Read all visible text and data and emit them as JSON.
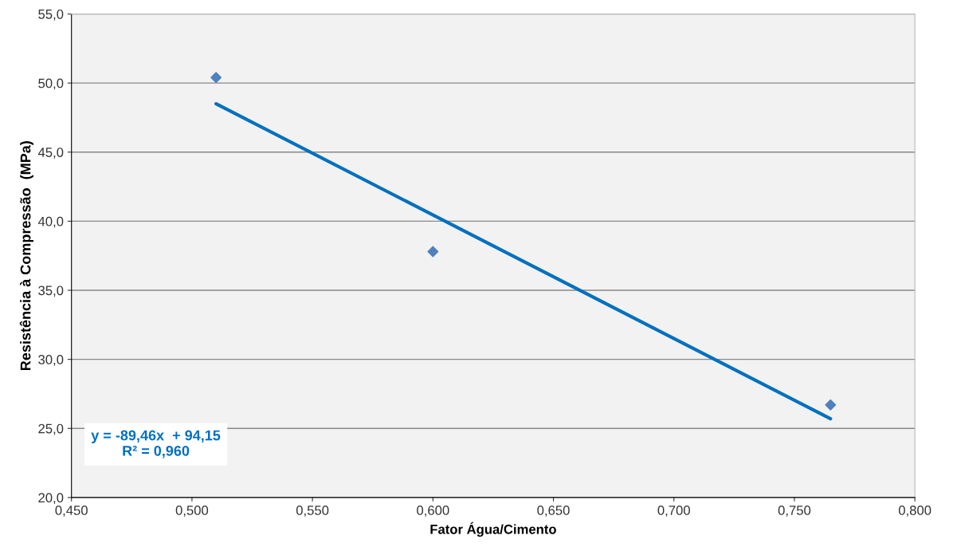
{
  "chart_data": {
    "type": "scatter",
    "xlabel": "Fator Água/Cimento",
    "ylabel": "Resistência à Compressão  (MPa)",
    "x": [
      0.51,
      0.6,
      0.765
    ],
    "series": [
      {
        "color": "#4f81bd",
        "values": [
          50.4,
          37.8,
          26.7
        ],
        "marker": "diamond"
      },
      {
        "type": "line",
        "color": "#0070c0",
        "x": [
          0.51,
          0.765
        ],
        "values": [
          48.5,
          25.7
        ],
        "line_style": "solid"
      }
    ],
    "xlim": [
      0.45,
      0.8
    ],
    "xticks": [
      {
        "value": 0.45,
        "label": "0,450"
      },
      {
        "value": 0.5,
        "label": "0,500"
      },
      {
        "value": 0.55,
        "label": "0,550"
      },
      {
        "value": 0.6,
        "label": "0,600"
      },
      {
        "value": 0.65,
        "label": "0,650"
      },
      {
        "value": 0.7,
        "label": "0,700"
      },
      {
        "value": 0.75,
        "label": "0,750"
      },
      {
        "value": 0.8,
        "label": "0,800"
      }
    ],
    "ylim": [
      20,
      55
    ],
    "yticks": [
      {
        "value": 20,
        "label": "20,0"
      },
      {
        "value": 25,
        "label": "25,0"
      },
      {
        "value": 30,
        "label": "30,0"
      },
      {
        "value": 35,
        "label": "35,0"
      },
      {
        "value": 40,
        "label": "40,0"
      },
      {
        "value": 45,
        "label": "45,0"
      },
      {
        "value": 50,
        "label": "50,0"
      },
      {
        "value": 55,
        "label": "55,0"
      }
    ],
    "grid": "y",
    "annotations": [
      "y = -89,46x  + 94,15\nR² = 0,960"
    ]
  }
}
